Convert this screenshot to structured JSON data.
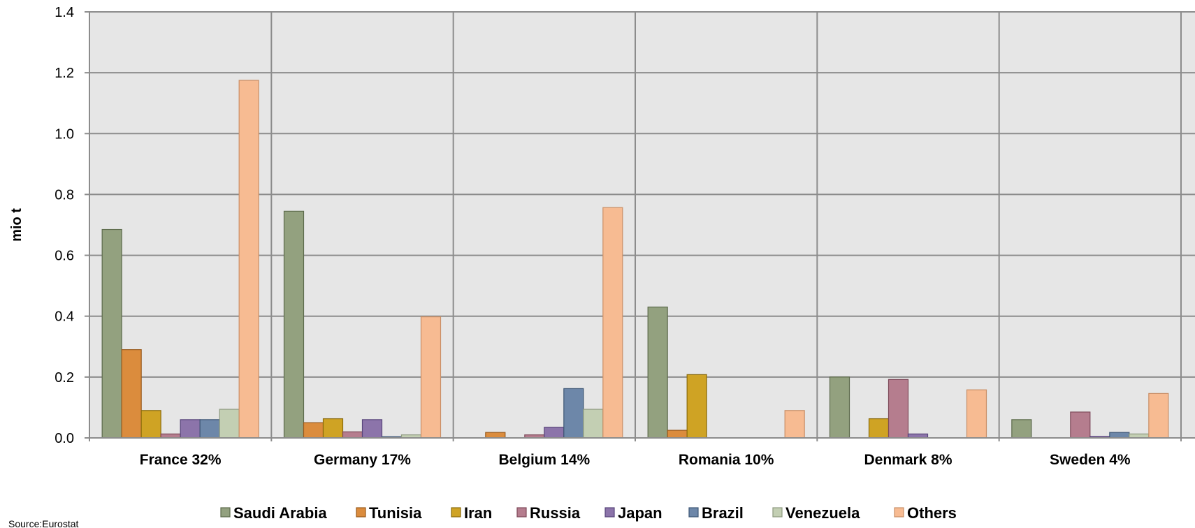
{
  "chart_data": {
    "type": "bar",
    "title": "",
    "xlabel": "",
    "ylabel": "mio t",
    "ylim": [
      0,
      1.4
    ],
    "yticks": [
      "0.0",
      "0.2",
      "0.4",
      "0.6",
      "0.8",
      "1.0",
      "1.2",
      "1.4"
    ],
    "grid": true,
    "legend_position": "bottom",
    "categories": [
      "France 32%",
      "Germany 17%",
      "Belgium 14%",
      "Romania 10%",
      "Denmark 8%",
      "Sweden 4%"
    ],
    "series": [
      {
        "name": "Saudi Arabia",
        "color": "#93a17f",
        "stroke": "#5c6a4b",
        "values": [
          0.685,
          0.745,
          0,
          0.43,
          0.2,
          0.06
        ]
      },
      {
        "name": "Tunisia",
        "color": "#db8c3d",
        "stroke": "#9a5a1c",
        "values": [
          0.29,
          0.05,
          0.018,
          0.025,
          0,
          0
        ]
      },
      {
        "name": "Iran",
        "color": "#cfa324",
        "stroke": "#8a6b0c",
        "values": [
          0.09,
          0.063,
          0,
          0.208,
          0.063,
          0
        ]
      },
      {
        "name": "Russia",
        "color": "#b57d8e",
        "stroke": "#7e4a5a",
        "values": [
          0.013,
          0.02,
          0.01,
          0,
          0.192,
          0.085
        ]
      },
      {
        "name": "Japan",
        "color": "#8c74aa",
        "stroke": "#58457a",
        "values": [
          0.06,
          0.06,
          0.035,
          0,
          0.013,
          0.005
        ]
      },
      {
        "name": "Brazil",
        "color": "#6d87a9",
        "stroke": "#3e5675",
        "values": [
          0.06,
          0.004,
          0.162,
          0,
          0,
          0.018
        ]
      },
      {
        "name": "Venezuela",
        "color": "#c3cfb3",
        "stroke": "#8e9a80",
        "values": [
          0.094,
          0.01,
          0.094,
          0,
          0,
          0.013
        ]
      },
      {
        "name": "Others",
        "color": "#f7bb92",
        "stroke": "#c98f67",
        "values": [
          1.175,
          0.398,
          0.757,
          0.09,
          0.158,
          0.146
        ]
      }
    ]
  },
  "source": "Source:Eurostat",
  "colors": {
    "plot_background": "#e6e6e6",
    "grid": "#8c8c8c"
  }
}
